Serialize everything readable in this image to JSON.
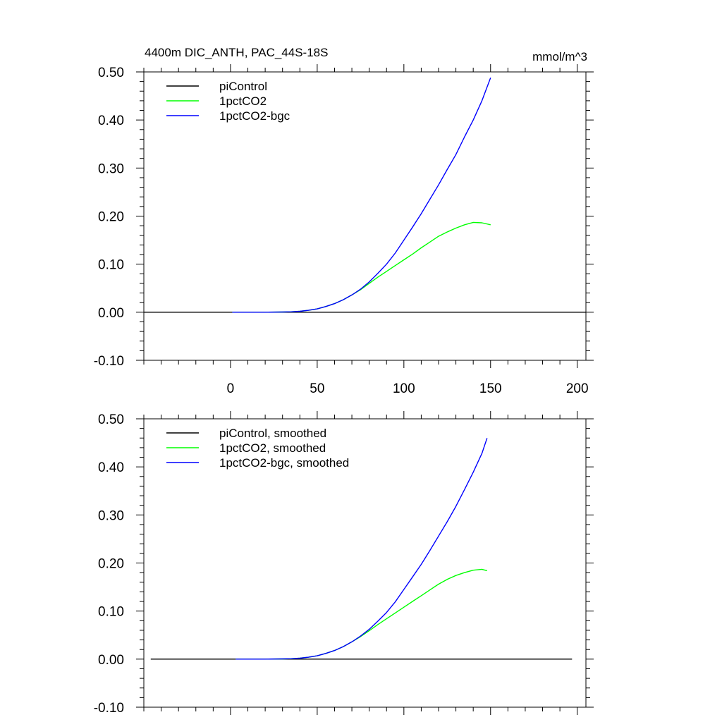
{
  "figure": {
    "title": "4400m DIC_ANTH, PAC_44S-18S",
    "units": "mmol/m^3"
  },
  "chart_data": [
    {
      "type": "line",
      "title": "4400m DIC_ANTH, PAC_44S-18S",
      "units_label": "mmol/m^3",
      "xlim": [
        -50,
        205
      ],
      "ylim": [
        -0.1,
        0.5
      ],
      "x_ticks": [
        0,
        50,
        100,
        150,
        200
      ],
      "x_tick_labels": [
        "0",
        "50",
        "100",
        "150",
        "200"
      ],
      "x_tick_labels_shown": true,
      "y_ticks": [
        -0.1,
        0.0,
        0.1,
        0.2,
        0.3,
        0.4,
        0.5
      ],
      "y_tick_labels": [
        "-0.10",
        "0.00",
        "0.10",
        "0.20",
        "0.30",
        "0.40",
        "0.50"
      ],
      "legend_position": "top-left",
      "series": [
        {
          "name": "piControl",
          "color": "#000000",
          "x": [
            -50,
            205
          ],
          "y": [
            0.0,
            0.0
          ]
        },
        {
          "name": "1pctCO2",
          "color": "#00ff00",
          "x": [
            1,
            10,
            20,
            30,
            35,
            40,
            45,
            50,
            55,
            60,
            65,
            70,
            75,
            80,
            85,
            90,
            95,
            100,
            105,
            110,
            115,
            120,
            125,
            130,
            135,
            140,
            145,
            150
          ],
          "y": [
            0.0,
            0.0,
            0.0,
            0.0005,
            0.001,
            0.002,
            0.004,
            0.007,
            0.012,
            0.018,
            0.026,
            0.036,
            0.047,
            0.06,
            0.073,
            0.085,
            0.097,
            0.109,
            0.121,
            0.134,
            0.146,
            0.158,
            0.167,
            0.175,
            0.182,
            0.187,
            0.186,
            0.182
          ]
        },
        {
          "name": "1pctCO2-bgc",
          "color": "#0000ff",
          "x": [
            1,
            10,
            20,
            30,
            35,
            40,
            45,
            50,
            55,
            60,
            65,
            70,
            75,
            80,
            85,
            90,
            95,
            100,
            105,
            110,
            115,
            120,
            125,
            130,
            135,
            140,
            145,
            150
          ],
          "y": [
            0.0,
            0.0,
            0.0,
            0.0005,
            0.001,
            0.002,
            0.004,
            0.007,
            0.012,
            0.018,
            0.026,
            0.036,
            0.048,
            0.063,
            0.081,
            0.1,
            0.123,
            0.15,
            0.177,
            0.205,
            0.235,
            0.265,
            0.297,
            0.328,
            0.365,
            0.4,
            0.44,
            0.488
          ]
        }
      ]
    },
    {
      "type": "line",
      "xlim": [
        -50,
        205
      ],
      "ylim": [
        -0.1,
        0.5
      ],
      "x_ticks": [
        0,
        50,
        100,
        150,
        200
      ],
      "x_tick_labels_shown": false,
      "y_ticks": [
        -0.1,
        0.0,
        0.1,
        0.2,
        0.3,
        0.4,
        0.5
      ],
      "y_tick_labels": [
        "-0.10",
        "0.00",
        "0.10",
        "0.20",
        "0.30",
        "0.40",
        "0.50"
      ],
      "legend_position": "top-left",
      "series": [
        {
          "name": "piControl, smoothed",
          "color": "#000000",
          "x": [
            -46,
            197
          ],
          "y": [
            0.0,
            0.0
          ]
        },
        {
          "name": "1pctCO2, smoothed",
          "color": "#00ff00",
          "x": [
            3,
            10,
            20,
            30,
            35,
            40,
            45,
            50,
            55,
            60,
            65,
            70,
            75,
            80,
            85,
            90,
            95,
            100,
            105,
            110,
            115,
            120,
            125,
            130,
            135,
            140,
            145,
            148
          ],
          "y": [
            0.0,
            0.0,
            0.0,
            0.0005,
            0.001,
            0.002,
            0.004,
            0.007,
            0.012,
            0.018,
            0.026,
            0.036,
            0.047,
            0.059,
            0.072,
            0.084,
            0.096,
            0.108,
            0.12,
            0.132,
            0.144,
            0.156,
            0.166,
            0.174,
            0.18,
            0.185,
            0.187,
            0.184
          ]
        },
        {
          "name": "1pctCO2-bgc, smoothed",
          "color": "#0000ff",
          "x": [
            3,
            10,
            20,
            30,
            35,
            40,
            45,
            50,
            55,
            60,
            65,
            70,
            75,
            80,
            85,
            90,
            95,
            100,
            105,
            110,
            115,
            120,
            125,
            130,
            135,
            140,
            145,
            148
          ],
          "y": [
            0.0,
            0.0,
            0.0,
            0.0005,
            0.001,
            0.002,
            0.004,
            0.007,
            0.012,
            0.018,
            0.026,
            0.036,
            0.048,
            0.062,
            0.079,
            0.097,
            0.119,
            0.145,
            0.171,
            0.197,
            0.226,
            0.256,
            0.286,
            0.318,
            0.353,
            0.389,
            0.428,
            0.46
          ]
        }
      ]
    }
  ]
}
